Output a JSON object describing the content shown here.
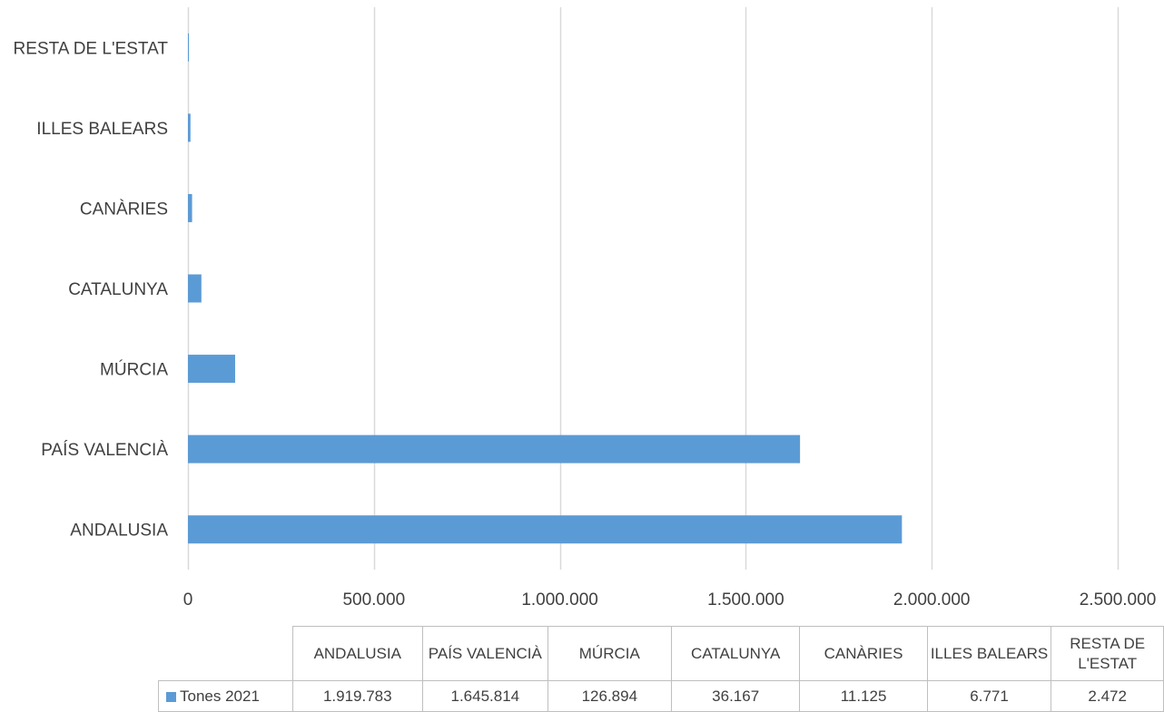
{
  "chart_data": {
    "type": "bar",
    "orientation": "horizontal",
    "categories": [
      "ANDALUSIA",
      "PAÍS VALENCIÀ",
      "MÚRCIA",
      "CATALUNYA",
      "CANÀRIES",
      "ILLES BALEARS",
      "RESTA DE L'ESTAT"
    ],
    "series": [
      {
        "name": "Tones  2021",
        "values": [
          1919783,
          1645814,
          126894,
          36167,
          11125,
          6771,
          2472
        ]
      }
    ],
    "xlim": [
      0,
      2500000
    ],
    "x_ticks": [
      0,
      500000,
      1000000,
      1500000,
      2000000,
      2500000
    ],
    "x_tick_labels": [
      "0",
      "500.000",
      "1.000.000",
      "1.500.000",
      "2.000.000",
      "2.500.000"
    ],
    "grid": "vertical",
    "legend": "data-table",
    "colors": {
      "bar": "#5b9bd5",
      "grid": "#d9d9d9",
      "text": "#404040"
    }
  },
  "data_table": {
    "headers": [
      "ANDALUSIA",
      "PAÍS VALENCIÀ",
      "MÚRCIA",
      "CATALUNYA",
      "CANÀRIES",
      "ILLES BALEARS",
      "RESTA DE L'ESTAT"
    ],
    "series_label": "Tones  2021",
    "values": [
      "1.919.783",
      "1.645.814",
      "126.894",
      "36.167",
      "11.125",
      "6.771",
      "2.472"
    ]
  }
}
